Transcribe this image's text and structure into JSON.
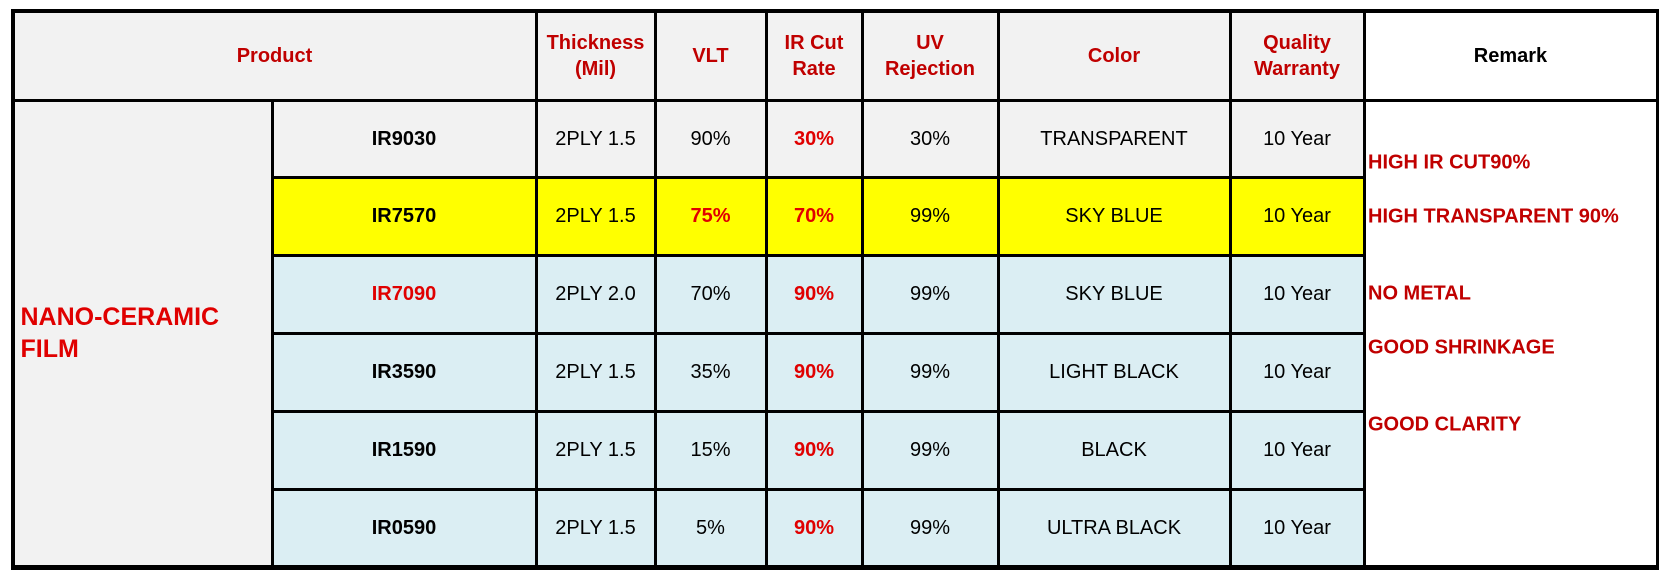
{
  "table": {
    "header": [
      "Product",
      "Thickness\n(Mil)",
      "VLT",
      "IR Cut\nRate",
      "UV\nRejection",
      "Color",
      "Quality\nWarranty",
      "Remark"
    ],
    "group": "NANO-CERAMIC\nFILM",
    "rows": [
      [
        "IR9030",
        "2PLY 1.5",
        "90%",
        "30%",
        "30%",
        "TRANSPARENT",
        "10 Year"
      ],
      [
        "IR7570",
        "2PLY 1.5",
        "75%",
        "70%",
        "99%",
        "SKY BLUE",
        "10 Year"
      ],
      [
        "IR7090",
        "2PLY 2.0",
        "70%",
        "90%",
        "99%",
        "SKY BLUE",
        "10 Year"
      ],
      [
        "IR3590",
        "2PLY 1.5",
        "35%",
        "90%",
        "99%",
        "LIGHT BLACK",
        "10 Year"
      ],
      [
        "IR1590",
        "2PLY 1.5",
        "15%",
        "90%",
        "99%",
        "BLACK",
        "10 Year"
      ],
      [
        "IR0590",
        "2PLY 1.5",
        "5%",
        "90%",
        "99%",
        "ULTRA BLACK",
        "10 Year"
      ]
    ],
    "remarks": [
      "HIGH IR CUT90%",
      "HIGH TRANSPARENT 90%",
      "NO METAL",
      "GOOD SHRINKAGE",
      "GOOD CLARITY"
    ]
  }
}
